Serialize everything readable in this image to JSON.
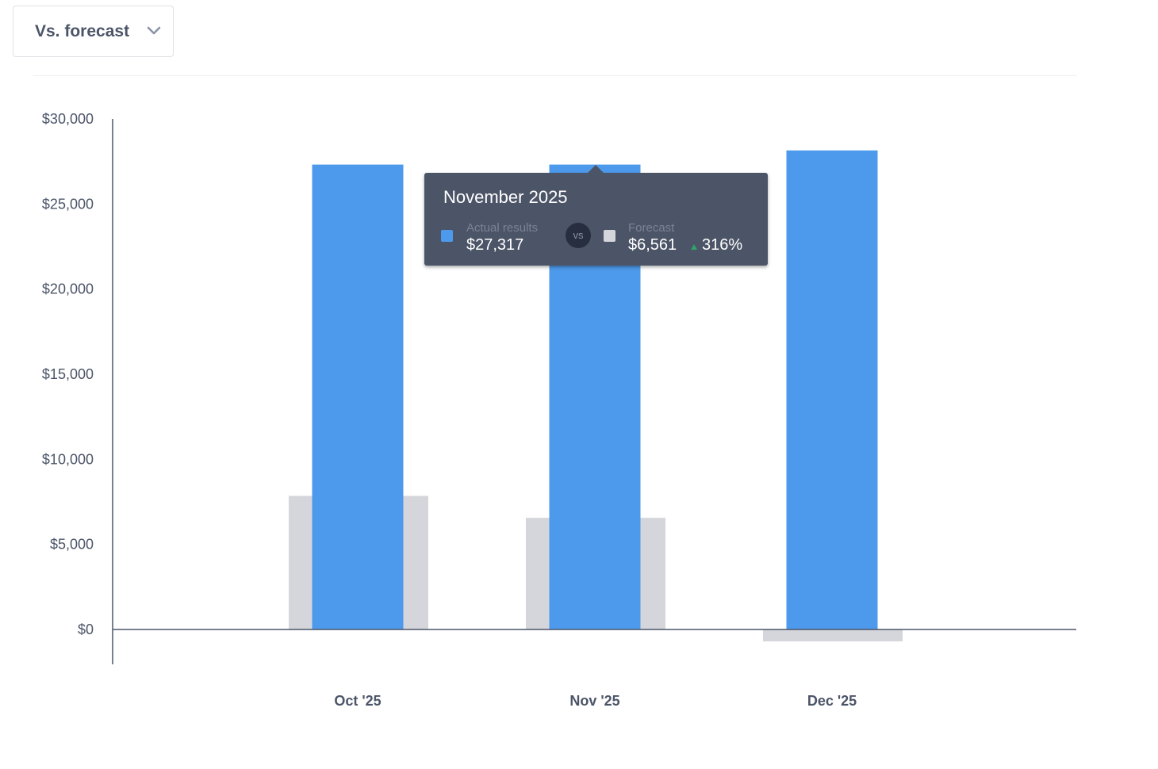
{
  "dropdown": {
    "label": "Vs. forecast",
    "icon": "chevron-down-icon"
  },
  "colors": {
    "actual": "#4d9aec",
    "forecast": "#d5d6db",
    "axis": "#4c5568",
    "positive": "#2fa36b"
  },
  "chart_data": {
    "type": "bar",
    "categories": [
      "Oct '25",
      "Nov '25",
      "Dec '25"
    ],
    "series": [
      {
        "name": "Actual results",
        "values": [
          27317,
          27317,
          28150
        ]
      },
      {
        "name": "Forecast",
        "values": [
          7850,
          6561,
          -700
        ]
      }
    ],
    "yticks": [
      "$30,000",
      "$25,000",
      "$20,000",
      "$15,000",
      "$10,000",
      "$5,000",
      "$0"
    ],
    "ytick_values": [
      30000,
      25000,
      20000,
      15000,
      10000,
      5000,
      0
    ],
    "ylim": [
      -2000,
      30000
    ],
    "grid": false,
    "legend": "none"
  },
  "tooltip": {
    "title": "November 2025",
    "actual_label": "Actual results",
    "actual_value": "$27,317",
    "vs": "vs",
    "forecast_label": "Forecast",
    "forecast_value": "$6,561",
    "change": "316%"
  }
}
